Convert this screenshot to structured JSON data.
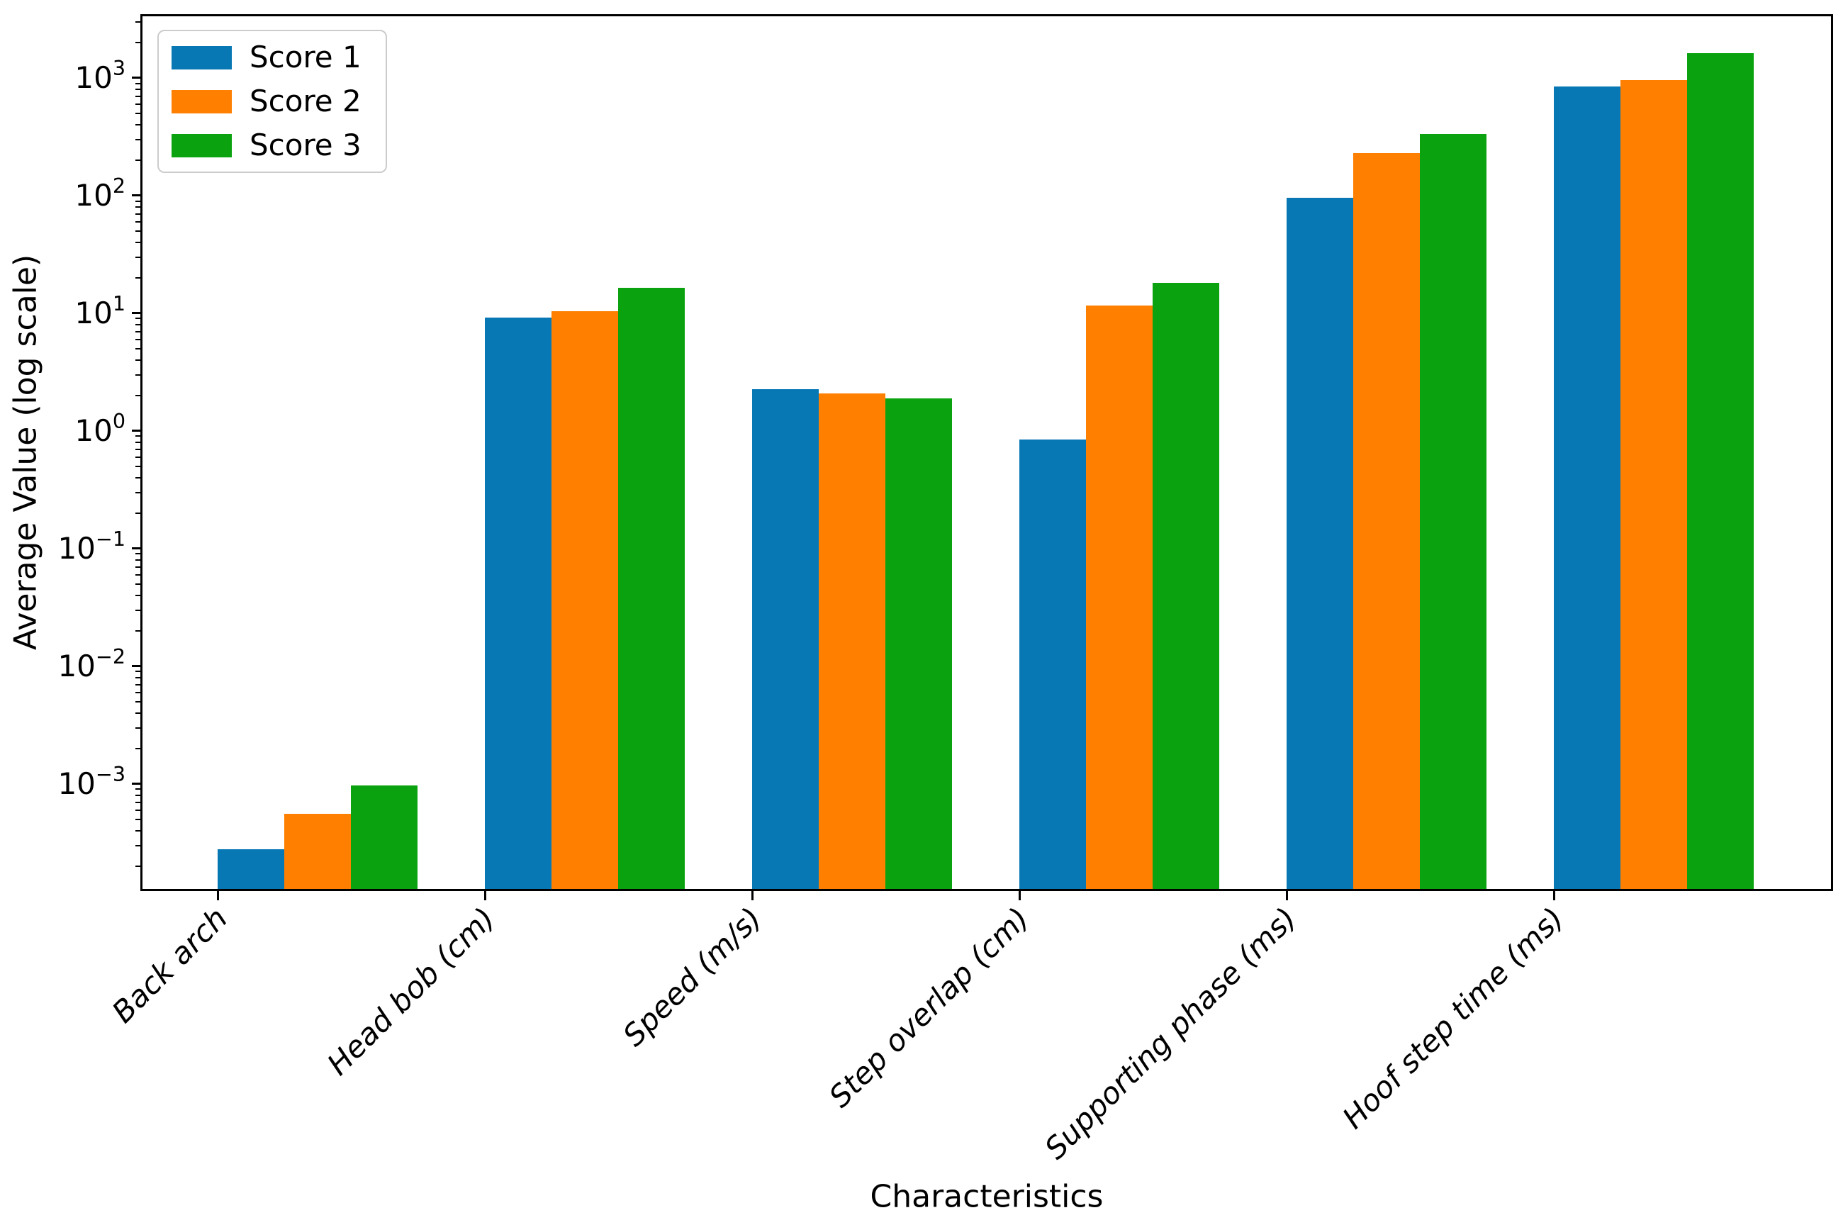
{
  "chart_data": {
    "type": "bar",
    "title": "",
    "xlabel": "Characteristics",
    "ylabel": "Average Value (log scale)",
    "categories": [
      "Back arch",
      "Head bob (cm)",
      "Speed (m/s)",
      "Step overlap (cm)",
      "Supporting phase (ms)",
      "Hoof step time (ms)"
    ],
    "series": [
      {
        "name": "Score 1",
        "color": "#0878b4",
        "values": [
          0.00028,
          9.2,
          2.27,
          0.84,
          96,
          847
        ]
      },
      {
        "name": "Score 2",
        "color": "#ff7f00",
        "values": [
          0.00056,
          10.4,
          2.08,
          11.6,
          230,
          959
        ]
      },
      {
        "name": "Score 3",
        "color": "#0aa30f",
        "values": [
          0.00097,
          16.5,
          1.89,
          18.2,
          334,
          1625
        ]
      }
    ],
    "yscale": "log",
    "ylim": [
      0.000128,
      3340
    ],
    "y_tick_exponents": [
      3,
      2,
      1,
      0,
      -1,
      -2,
      -3
    ],
    "legend": {
      "position": "upper left",
      "entries": [
        "Score 1",
        "Score 2",
        "Score 3"
      ]
    },
    "grid": false,
    "axis_color": "#000000",
    "background": "#ffffff"
  }
}
